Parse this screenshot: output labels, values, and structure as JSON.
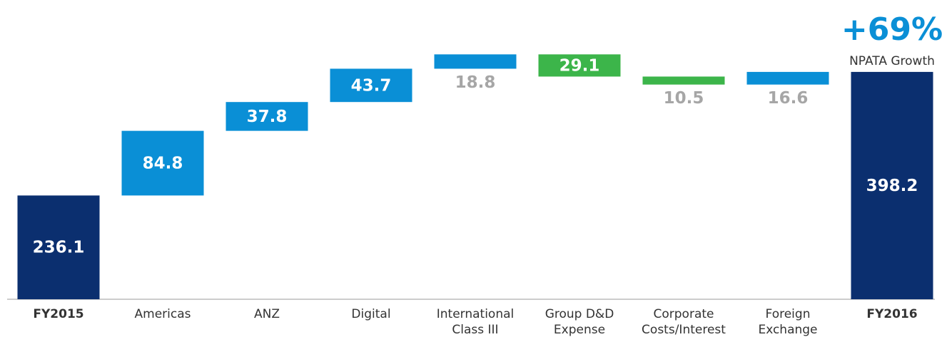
{
  "chart_data": {
    "type": "waterfall",
    "categories": [
      "FY2015",
      "Americas",
      "ANZ",
      "Digital",
      "International Class III",
      "Group D&D Expense",
      "Corporate Costs/Interest",
      "Foreign Exchange",
      "FY2016"
    ],
    "values": [
      236.1,
      84.8,
      37.8,
      43.7,
      18.8,
      29.1,
      10.5,
      16.6,
      398.2
    ],
    "kinds": [
      "total",
      "increase",
      "increase",
      "increase",
      "increase",
      "decrease",
      "decrease",
      "increase",
      "total"
    ],
    "colors": [
      "#0b2f6f",
      "#0a8fd6",
      "#0a8fd6",
      "#0a8fd6",
      "#0a8fd6",
      "#3cb54a",
      "#3cb54a",
      "#0a8fd6",
      "#0b2f6f"
    ],
    "ylim": [
      100,
      440
    ],
    "annotation": {
      "value": "+69%",
      "text": "NPATA Growth"
    }
  }
}
